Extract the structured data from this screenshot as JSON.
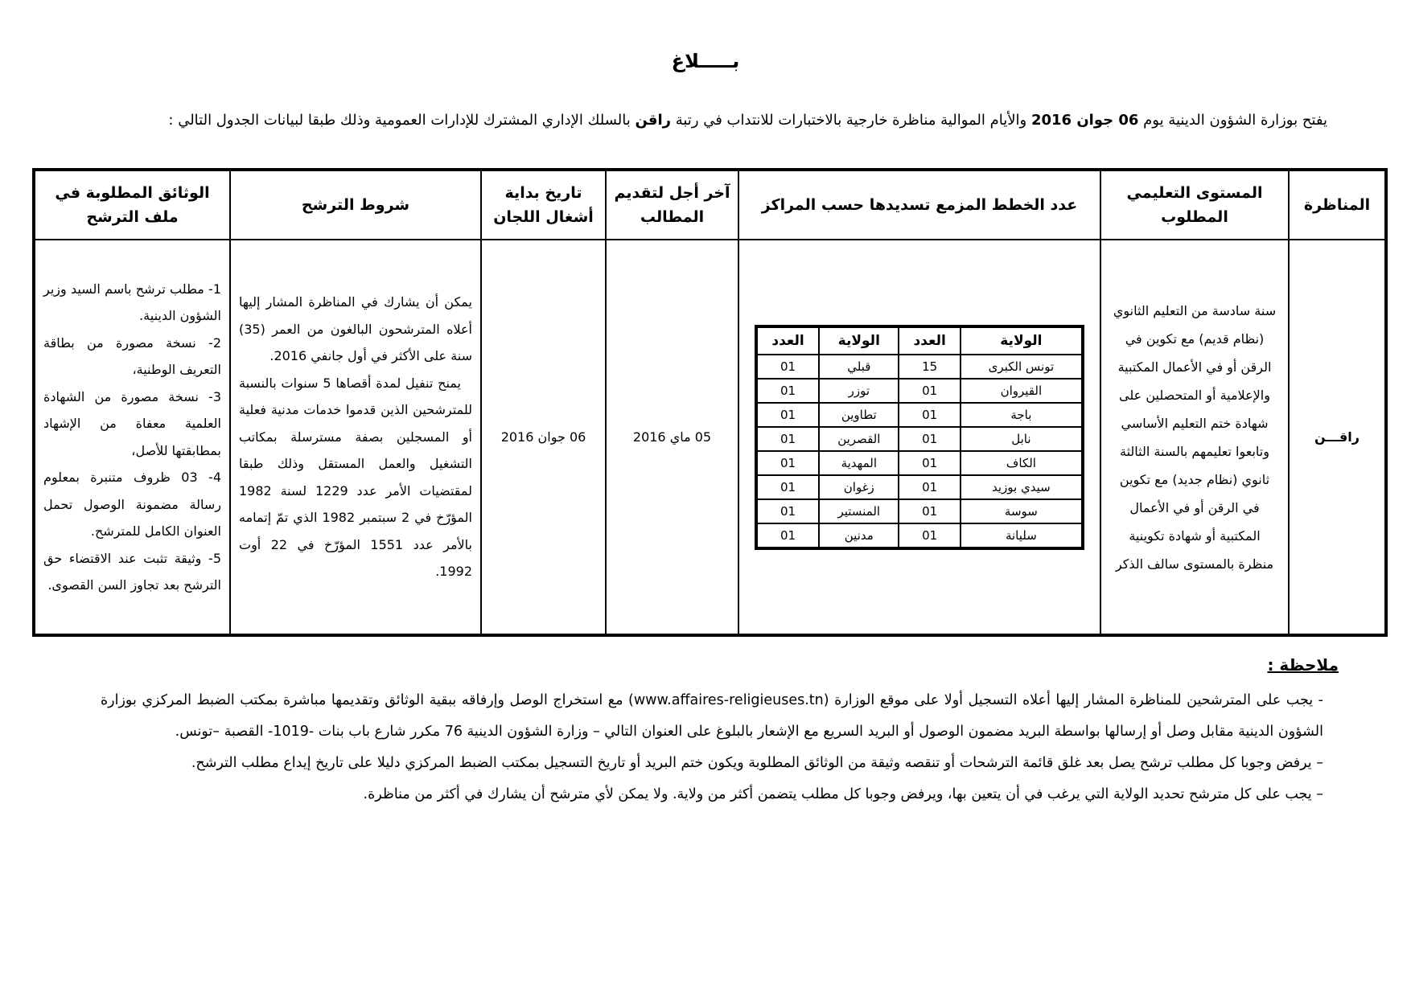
{
  "title": "بـــــلاغ",
  "intro": {
    "part1": "يفتح بوزارة الشؤون الدينية يوم ",
    "date_bold": "06 جوان 2016",
    "part2": " والأيام الموالية مناظرة خارجية بالاختبارات للانتداب في رتبة ",
    "grade_bold": "راقن",
    "part3": " بالسلك الإداري المشترك للإدارات العمومية وذلك طبقا لبيانات الجدول التالي :"
  },
  "table": {
    "headers": [
      "المناظرة",
      "المستوى التعليمي المطلوب",
      "عدد الخطط المزمع تسديدها حسب المراكز",
      "آخر أجل لتقديم المطالب",
      "تاريخ بداية أشغال اللجان",
      "شروط الترشح",
      "الوثائق المطلوبة في ملف الترشح"
    ],
    "row": {
      "competition": "راقـــن",
      "level": "سنة سادسة من التعليم الثانوي (نظام قديم) مع تكوين في الرقن أو في الأعمال المكتبية والإعلامية أو المتحصلين على شهادة ختم التعليم الأساسي وتابعوا تعليمهم بالسنة الثالثة ثانوي (نظام جديد) مع تكوين في الرقن أو في الأعمال المكتبية أو شهادة تكوينية منظرة بالمستوى سالف الذكر",
      "deadline": "05 ماي 2016",
      "committee_start": "06 جوان 2016",
      "conditions": [
        "يمكن أن يشارك في المناظرة المشار إليها أعلاه المترشحون البالغون من العمر (35) سنة على الأكثر في أول جانفي 2016.",
        "يمنح تنفيل لمدة أقصاها 5 سنوات بالنسبة للمترشحين الذين قدموا خدمات مدنية فعلية أو المسجلين بصفة مسترسلة بمكاتب التشغيل والعمل المستقل وذلك طبقا لمقتضيات الأمر عدد 1229 لسنة 1982 المؤرّخ في 2 سبتمبر 1982 الذي تمّ إتمامه بالأمر عدد 1551 المؤرّخ في 22 أوت 1992."
      ],
      "documents": [
        "1- مطلب ترشح باسم السيد وزير الشؤون الدينية.",
        "2- نسخة مصورة من بطاقة التعريف الوطنية،",
        "3- نسخة مصورة من الشهادة العلمية معفاة من الإشهاد بمطابقتها للأصل،",
        "4- 03 ظروف متنبرة بمعلوم رسالة مضمونة الوصول تحمل العنوان الكامل للمترشح.",
        "5- وثيقة تثبت عند الاقتضاء حق الترشح بعد تجاوز السن القصوى."
      ]
    },
    "positions": {
      "headers": [
        "الولاية",
        "العدد",
        "الولاية",
        "العدد"
      ],
      "rows": [
        [
          "تونس الكبرى",
          "15",
          "قبلي",
          "01"
        ],
        [
          "القيروان",
          "01",
          "توزر",
          "01"
        ],
        [
          "باجة",
          "01",
          "تطاوين",
          "01"
        ],
        [
          "نابل",
          "01",
          "القصرين",
          "01"
        ],
        [
          "الكاف",
          "01",
          "المهدية",
          "01"
        ],
        [
          "سيدي بوزيد",
          "01",
          "زغوان",
          "01"
        ],
        [
          "سوسة",
          "01",
          "المنستير",
          "01"
        ],
        [
          "سليانة",
          "01",
          "مدنين",
          "01"
        ]
      ]
    }
  },
  "notes": {
    "title": "ملاحظة :",
    "n1_a": "- يجب على المترشحين للمناظرة المشار إليها أعلاه التسجيل أولا على موقع الوزارة (",
    "n1_url": "www.affaires-religieuses.tn",
    "n1_b": ") مع استخراج الوصل وإرفاقه ببقية الوثائق وتقديمها مباشرة بمكتب الضبط المركزي بوزارة الشؤون الدينية مقابل وصل أو إرسالها بواسطة البريد مضمون الوصول أو البريد السريع مع الإشعار بالبلوغ على العنوان التالي – وزارة الشؤون الدينية 76 مكرر شارع باب بنات -1019- القصبة –تونس.",
    "n2": "– يرفض وجوبا كل مطلب ترشح يصل بعد غلق قائمة الترشحات أو تنقصه وثيقة من الوثائق المطلوبة ويكون ختم البريد أو تاريخ التسجيل بمكتب الضبط المركزي دليلا على تاريخ إيداع مطلب الترشح.",
    "n3": "– يجب على كل مترشح تحديد الولاية التي يرغب في أن يتعين بها، ويرفض وجوبا كل مطلب يتضمن أكثر من ولاية. ولا يمكن لأي مترشح أن يشارك في أكثر من مناظرة."
  }
}
